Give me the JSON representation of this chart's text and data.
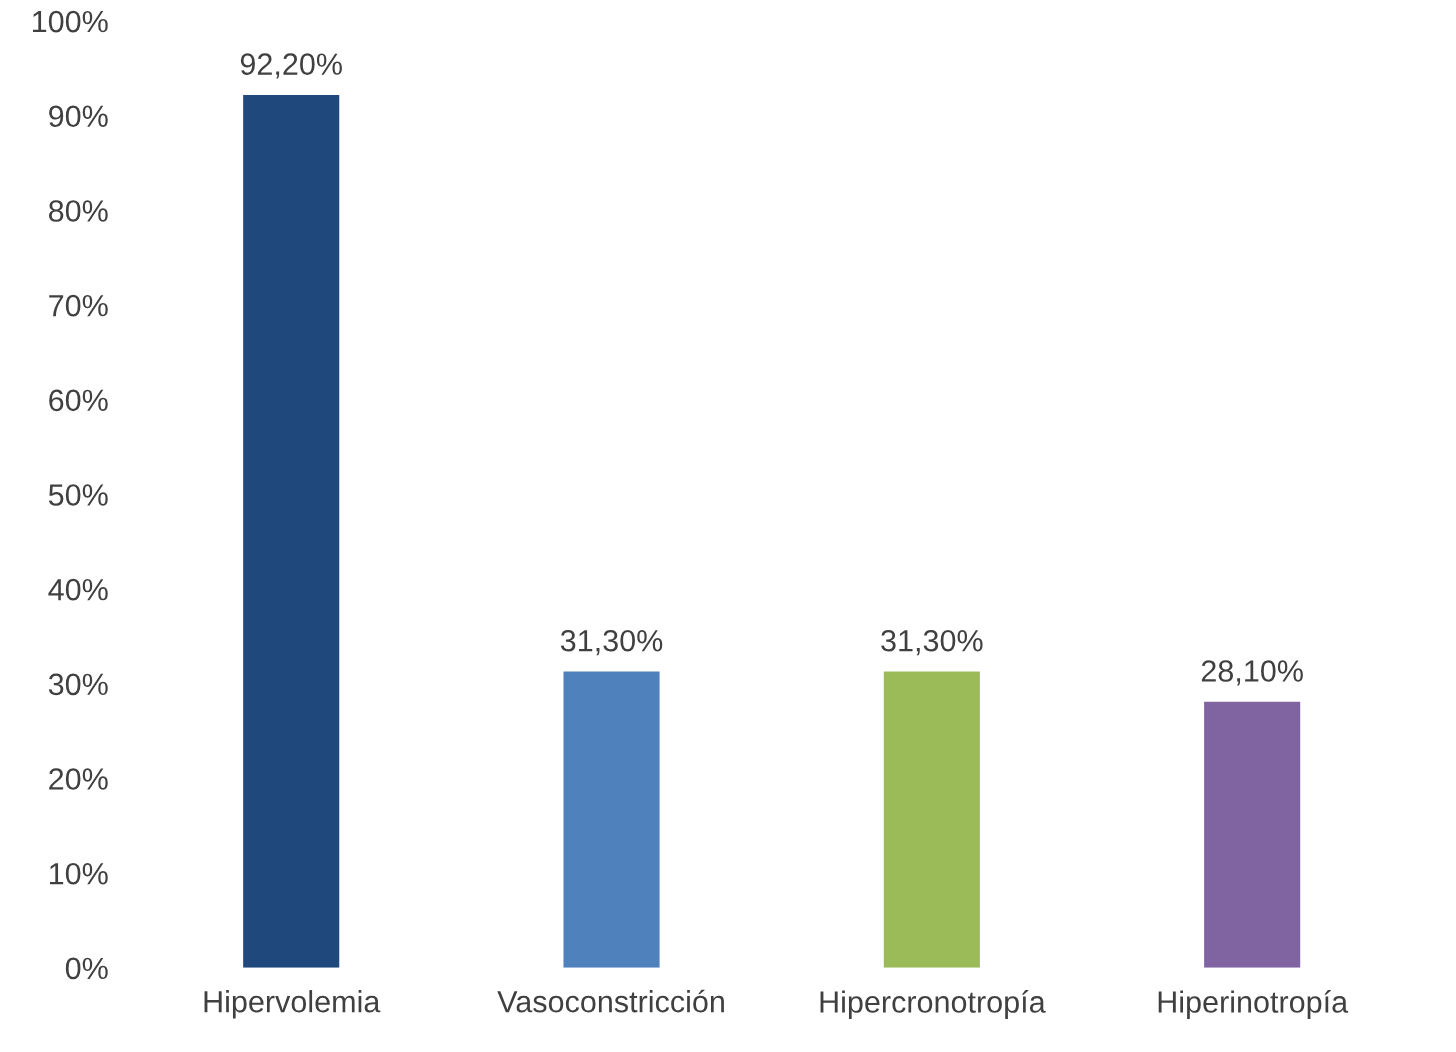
{
  "chart_data": {
    "type": "bar",
    "categories": [
      "Hipervolemia",
      "Vasoconstricción",
      "Hipercronotropía",
      "Hiperinotropía"
    ],
    "values": [
      92.2,
      31.3,
      31.3,
      28.1
    ],
    "colors": [
      "#1f497d",
      "#4f81bd",
      "#9bbb59",
      "#8064a2"
    ],
    "value_labels": [
      "92,20%",
      "31,30%",
      "31,30%",
      "28,10%"
    ],
    "ylim": [
      0,
      100
    ],
    "yticks": [
      {
        "value": 0,
        "label": "0%"
      },
      {
        "value": 10,
        "label": "10%"
      },
      {
        "value": 20,
        "label": "20%"
      },
      {
        "value": 30,
        "label": "30%"
      },
      {
        "value": 40,
        "label": "40%"
      },
      {
        "value": 50,
        "label": "50%"
      },
      {
        "value": 60,
        "label": "60%"
      },
      {
        "value": 70,
        "label": "70%"
      },
      {
        "value": 80,
        "label": "80%"
      },
      {
        "value": 90,
        "label": "90%"
      },
      {
        "value": 100,
        "label": "100%"
      }
    ],
    "grid": false
  }
}
